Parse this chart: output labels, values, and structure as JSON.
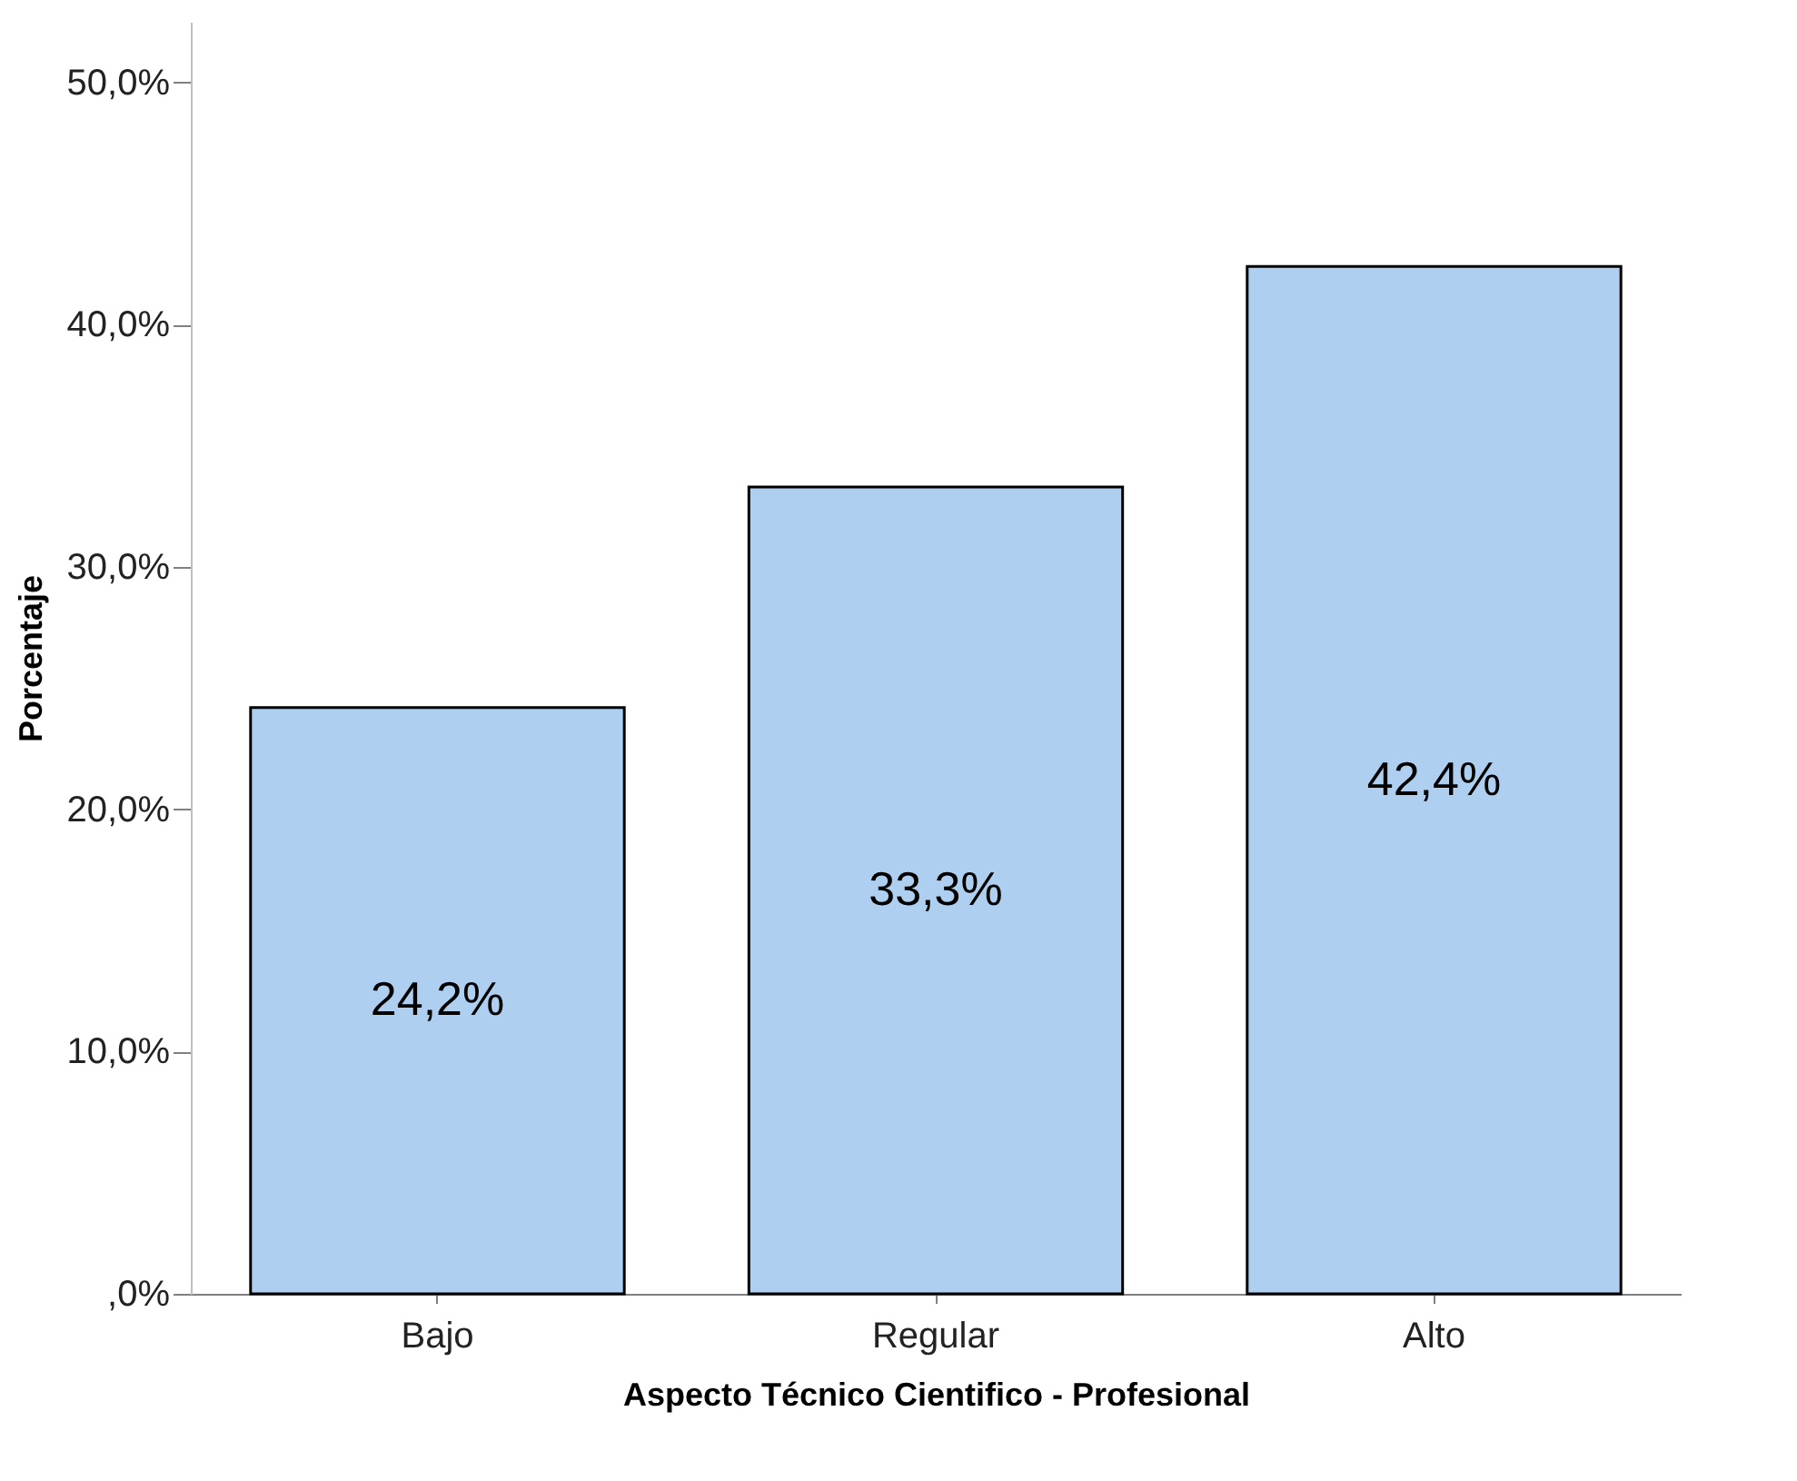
{
  "chart_data": {
    "type": "bar",
    "xlabel": "Aspecto Técnico Cientifico - Profesional",
    "ylabel": "Porcentaje",
    "categories": [
      "Bajo",
      "Regular",
      "Alto"
    ],
    "values": [
      24.2,
      33.3,
      42.4
    ],
    "color": "#aecff0",
    "value_labels": [
      "24,2%",
      "33,3%",
      "42,4%"
    ],
    "ylim": [
      0,
      52.5
    ],
    "yticks": [
      {
        "value": 0,
        "label": ",0%"
      },
      {
        "value": 10,
        "label": "10,0%"
      },
      {
        "value": 20,
        "label": "20,0%"
      },
      {
        "value": 30,
        "label": "30,0%"
      },
      {
        "value": 40,
        "label": "40,0%"
      },
      {
        "value": 50,
        "label": "50,0%"
      }
    ],
    "grid": false
  }
}
